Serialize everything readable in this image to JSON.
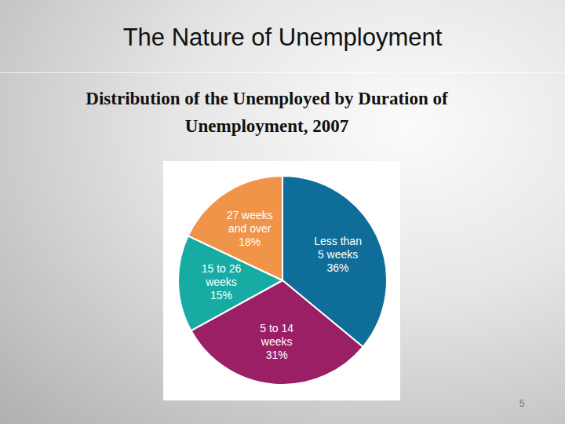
{
  "slide": {
    "title": "The Nature of Unemployment",
    "page_number": 5
  },
  "chart_data": {
    "type": "pie",
    "title": "Distribution of the Unemployed by Duration of Unemployment, 2007",
    "categories": [
      "Less than 5 weeks",
      "5 to 14 weeks",
      "15 to 26 weeks",
      "27 weeks and over"
    ],
    "values": [
      36,
      31,
      15,
      18
    ],
    "value_labels": [
      "36%",
      "31%",
      "15%",
      "18%"
    ],
    "colors": [
      "#0f6e99",
      "#9b1f64",
      "#17aca3",
      "#f0944a"
    ],
    "data_labels": true
  }
}
